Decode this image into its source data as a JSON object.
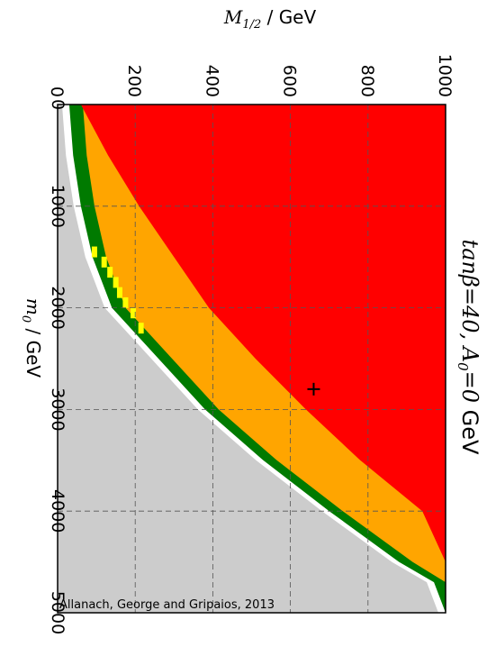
{
  "chart_data": {
    "type": "heatmap",
    "title_parts": {
      "prefix": "tan",
      "beta": "β",
      "eq1": "=40, ",
      "A": "A",
      "A_sub": "0",
      "eq2": "=0",
      "unit": " GeV"
    },
    "xaxis_label": {
      "symbol": "M",
      "sub": "1/2",
      "unit": " / GeV"
    },
    "yaxis_label": {
      "symbol": "m",
      "sub": "0",
      "unit": " / GeV"
    },
    "x_range": [
      0,
      1000
    ],
    "x_ticks": [
      "0",
      "200",
      "400",
      "600",
      "800",
      "1000"
    ],
    "y_range": [
      0,
      5000
    ],
    "y_ticks": [
      "0",
      "1000",
      "2000",
      "3000",
      "4000",
      "5000"
    ],
    "grid": true,
    "marker": {
      "m_half": 660,
      "m0": 2800,
      "symbol": "+"
    },
    "colors": {
      "excluded": "#cccccc",
      "white_gap": "#ffffff",
      "green": "#007a00",
      "yellow": "#ffff00",
      "orange": "#ffa500",
      "red": "#ff0000"
    },
    "regions": {
      "boundary_m0": [
        0,
        500,
        1000,
        1500,
        2000,
        2500,
        3000,
        3500,
        4000,
        4500,
        4700,
        5000
      ],
      "boundary_mhalf": [
        30,
        40,
        60,
        90,
        140,
        260,
        380,
        530,
        700,
        880,
        970,
        1000
      ],
      "green_band_width": 35,
      "orange_upper_mhalf": [
        60,
        130,
        210,
        300,
        390,
        510,
        640,
        780,
        940,
        1000,
        1000,
        1000
      ]
    },
    "credit": "Allanach, George and Gripaios, 2013"
  }
}
